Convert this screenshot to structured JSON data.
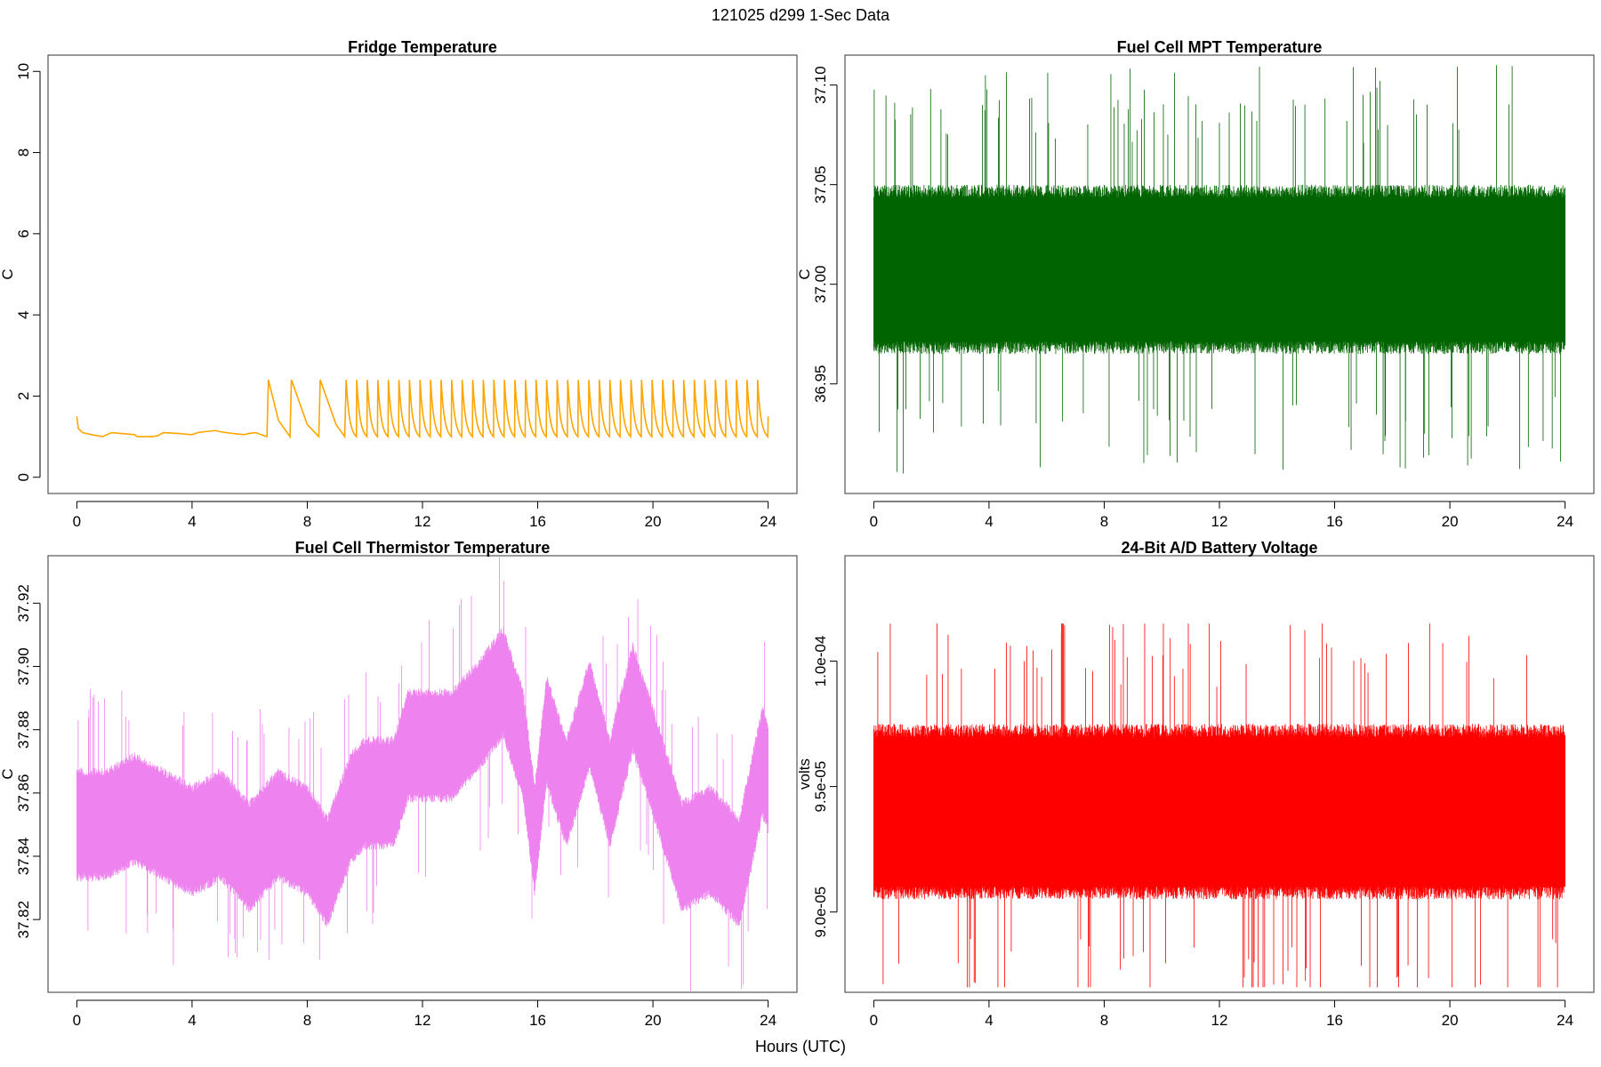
{
  "figure": {
    "title": "121025   d299   1-Sec Data",
    "xlabel": "Hours (UTC)"
  },
  "chart_data": [
    {
      "type": "line",
      "title": "Fridge Temperature",
      "xlabel": "Hours (UTC)",
      "ylabel": "C",
      "color": "#FFA500",
      "xlim": [
        -1,
        25
      ],
      "ylim": [
        -0.4,
        10.4
      ],
      "xticks": [
        0,
        4,
        8,
        12,
        16,
        20,
        24
      ],
      "yticks": [
        0,
        2,
        4,
        6,
        8,
        10
      ],
      "ytick_labels": [
        "0",
        "2",
        "4",
        "6",
        "8",
        "10"
      ],
      "series": [
        {
          "name": "Fridge Temperature",
          "x": [
            0.0,
            0.05,
            0.2,
            0.5,
            0.9,
            1.2,
            1.5,
            2.0,
            2.1,
            2.6,
            2.8,
            3.0,
            3.5,
            3.8,
            4.0,
            4.2,
            4.4,
            4.8,
            5.0,
            5.2,
            5.4,
            5.8,
            6.0,
            6.2,
            6.6,
            6.65,
            7.0,
            7.4,
            7.45,
            8.0,
            8.4,
            8.45,
            9.0,
            9.3,
            9.35
          ],
          "y": [
            1.5,
            1.2,
            1.1,
            1.05,
            1.0,
            1.1,
            1.08,
            1.05,
            1.0,
            1.0,
            1.02,
            1.1,
            1.08,
            1.06,
            1.05,
            1.1,
            1.12,
            1.15,
            1.12,
            1.1,
            1.08,
            1.05,
            1.08,
            1.1,
            1.0,
            2.4,
            1.4,
            1.0,
            2.4,
            1.3,
            1.0,
            2.4,
            1.3,
            1.0,
            2.4
          ]
        }
      ],
      "sawtooth": {
        "start": 9.35,
        "end": 24.0,
        "count": 40,
        "peak": 2.4,
        "trough": 1.0,
        "final": 1.5
      }
    },
    {
      "type": "line",
      "title": "Fuel Cell MPT Temperature",
      "xlabel": "Hours (UTC)",
      "ylabel": "C",
      "color": "#006400",
      "xlim": [
        -1,
        25
      ],
      "ylim": [
        36.895,
        37.115
      ],
      "xticks": [
        0,
        4,
        8,
        12,
        16,
        20,
        24
      ],
      "yticks": [
        36.95,
        37.0,
        37.05,
        37.1
      ],
      "ytick_labels": [
        "36.95",
        "37.00",
        "37.05",
        "37.10"
      ],
      "series": [
        {
          "name": "MPT Temperature",
          "mean": 37.01,
          "band_low": 36.965,
          "band_high": 37.05,
          "min": 36.905,
          "max": 37.11
        }
      ]
    },
    {
      "type": "line",
      "title": "Fuel Cell Thermistor Temperature",
      "xlabel": "Hours (UTC)",
      "ylabel": "C",
      "color": "#EE82EE",
      "xlim": [
        -1,
        25
      ],
      "ylim": [
        37.797,
        37.935
      ],
      "xticks": [
        0,
        4,
        8,
        12,
        16,
        20,
        24
      ],
      "yticks": [
        37.82,
        37.84,
        37.86,
        37.88,
        37.9,
        37.92
      ],
      "ytick_labels": [
        "37.82",
        "37.84",
        "37.86",
        "37.88",
        "37.90",
        "37.92"
      ],
      "series": [
        {
          "name": "Thermistor Temperature",
          "x": [
            0,
            1,
            2,
            3,
            4,
            5,
            6,
            7,
            8,
            8.7,
            9.5,
            10,
            11,
            11.5,
            12,
            13,
            14,
            14.8,
            15.5,
            15.9,
            16.3,
            17,
            17.8,
            18.5,
            19.3,
            20,
            21,
            22,
            23,
            23.8,
            24
          ],
          "mean": [
            37.85,
            37.85,
            37.855,
            37.85,
            37.845,
            37.85,
            37.84,
            37.85,
            37.845,
            37.835,
            37.855,
            37.86,
            37.86,
            37.875,
            37.875,
            37.875,
            37.885,
            37.895,
            37.875,
            37.845,
            37.88,
            37.86,
            37.885,
            37.86,
            37.89,
            37.87,
            37.84,
            37.845,
            37.835,
            37.87,
            37.865
          ],
          "halfwidth": 0.018
        }
      ]
    },
    {
      "type": "line",
      "title": "24-Bit A/D Battery Voltage",
      "xlabel": "Hours (UTC)",
      "ylabel": "volts",
      "color": "#FF0000",
      "xlim": [
        -1,
        25
      ],
      "ylim": [
        8.68e-05,
        0.0001042
      ],
      "xticks": [
        0,
        4,
        8,
        12,
        16,
        20,
        24
      ],
      "yticks": [
        9e-05,
        9.5e-05,
        0.0001
      ],
      "ytick_labels": [
        "9.0e-05",
        "9.5e-05",
        "1.0e-04"
      ],
      "series": [
        {
          "name": "Battery Voltage",
          "mean": 9.38e-05,
          "band_low": 9.05e-05,
          "band_high": 9.75e-05,
          "min": 8.7e-05,
          "max": 0.0001015
        }
      ]
    }
  ]
}
